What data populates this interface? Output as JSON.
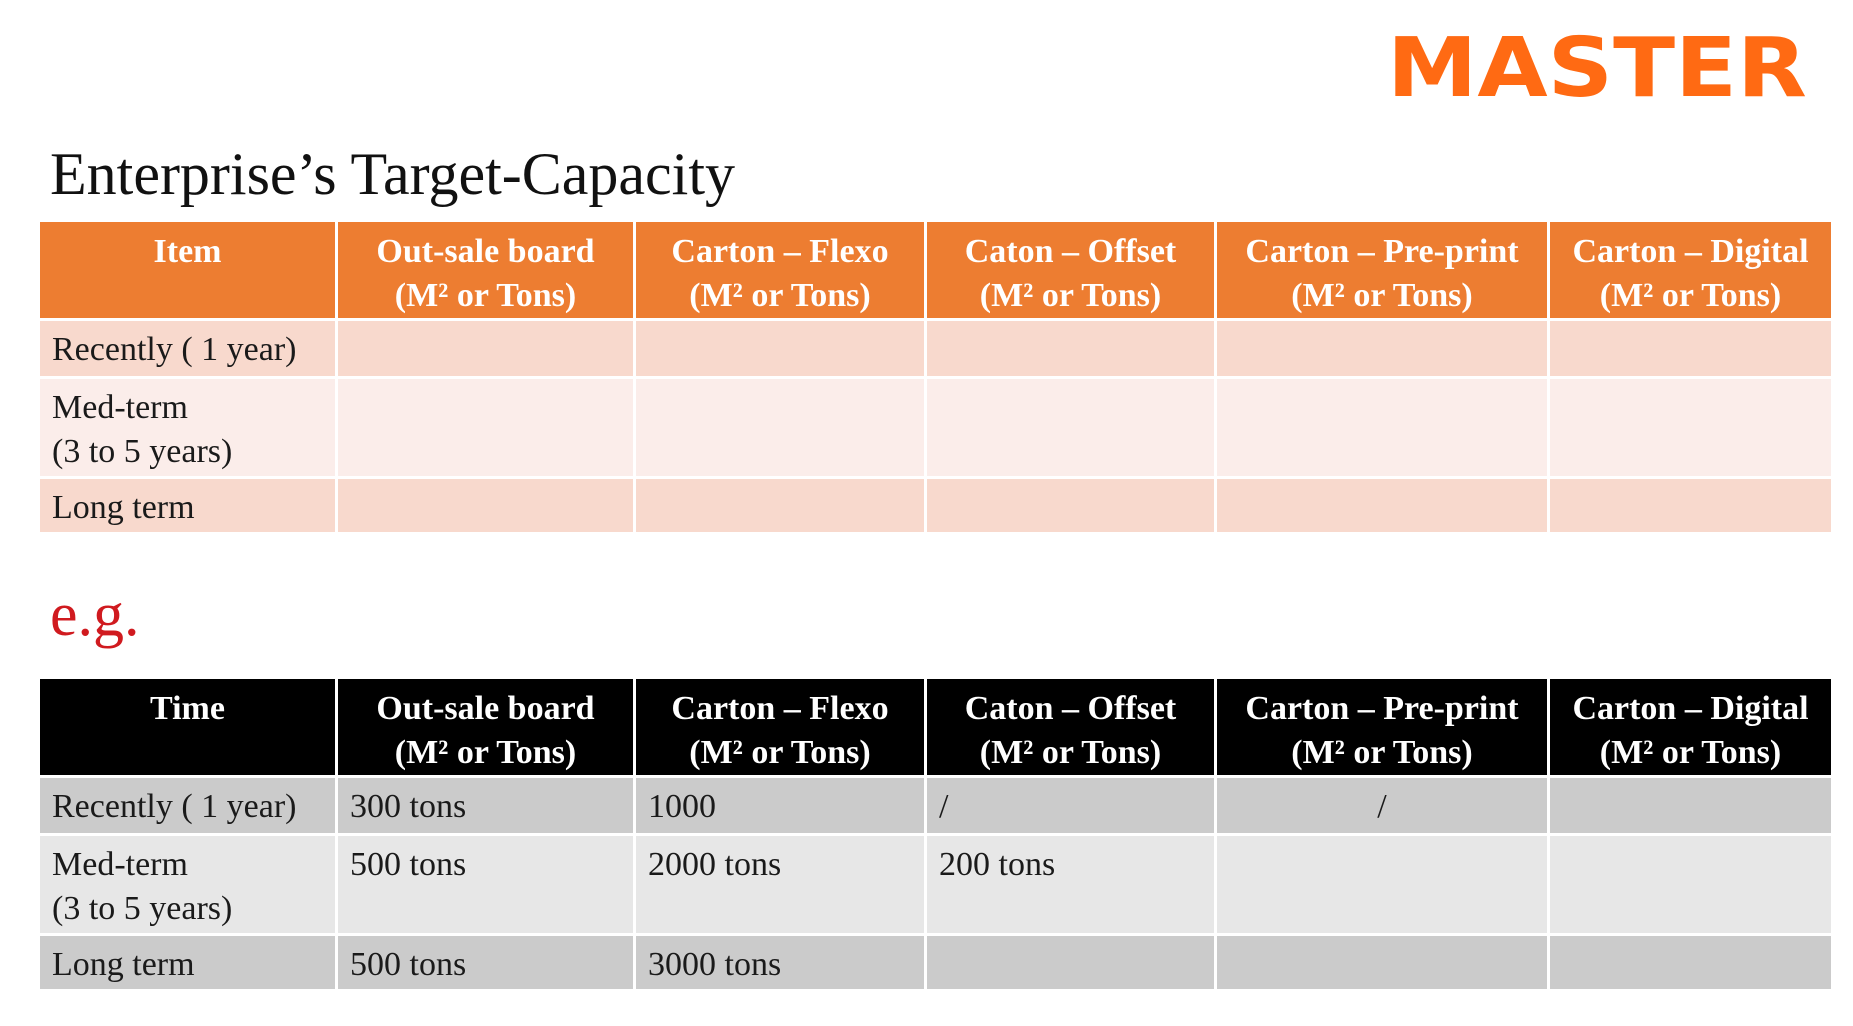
{
  "logo": {
    "text": "MASTER",
    "color": "#ff6a13"
  },
  "title": "Enterprise’s Target-Capacity",
  "eg_label": "e.g.",
  "colors": {
    "orange_header": "#ed7d31",
    "orange_row_dark": "#f8d9cd",
    "orange_row_light": "#fbedea",
    "black_header": "#000000",
    "grey_row_dark": "#cbcbcb",
    "grey_row_light": "#e7e7e7",
    "eg_red": "#d01a1f"
  },
  "target_table": {
    "headers": [
      {
        "line1": "Item",
        "line2": ""
      },
      {
        "line1": "Out-sale board",
        "line2": "(M² or Tons)"
      },
      {
        "line1": "Carton – Flexo",
        "line2": "(M² or Tons)"
      },
      {
        "line1": "Caton – Offset",
        "line2": "(M² or Tons)"
      },
      {
        "line1": "Carton – Pre-print",
        "line2": "(M² or Tons)"
      },
      {
        "line1": "Carton – Digital",
        "line2": "(M² or Tons)"
      }
    ],
    "rows": [
      {
        "label_line1": "Recently ( 1 year)",
        "label_line2": "",
        "cells": [
          "",
          "",
          "",
          "",
          ""
        ]
      },
      {
        "label_line1": "Med-term",
        "label_line2": "(3 to 5 years)",
        "cells": [
          "",
          "",
          "",
          "",
          ""
        ]
      },
      {
        "label_line1": "Long term",
        "label_line2": "",
        "cells": [
          "",
          "",
          "",
          "",
          ""
        ]
      }
    ]
  },
  "example_table": {
    "headers": [
      {
        "line1": "Time",
        "line2": ""
      },
      {
        "line1": "Out-sale board",
        "line2": "(M² or Tons)"
      },
      {
        "line1": "Carton – Flexo",
        "line2": "(M² or Tons)"
      },
      {
        "line1": "Caton – Offset",
        "line2": "(M² or Tons)"
      },
      {
        "line1": "Carton – Pre-print",
        "line2": "(M² or Tons)"
      },
      {
        "line1": "Carton – Digital",
        "line2": "(M² or Tons)"
      }
    ],
    "rows": [
      {
        "label_line1": "Recently ( 1 year)",
        "label_line2": "",
        "cells": [
          "300 tons",
          "1000",
          "/",
          "/",
          ""
        ]
      },
      {
        "label_line1": "Med-term",
        "label_line2": "(3 to 5 years)",
        "cells": [
          "500 tons",
          "2000 tons",
          "200 tons",
          "",
          ""
        ]
      },
      {
        "label_line1": "Long term",
        "label_line2": "",
        "cells": [
          "500 tons",
          "3000 tons",
          "",
          "",
          ""
        ]
      }
    ]
  }
}
